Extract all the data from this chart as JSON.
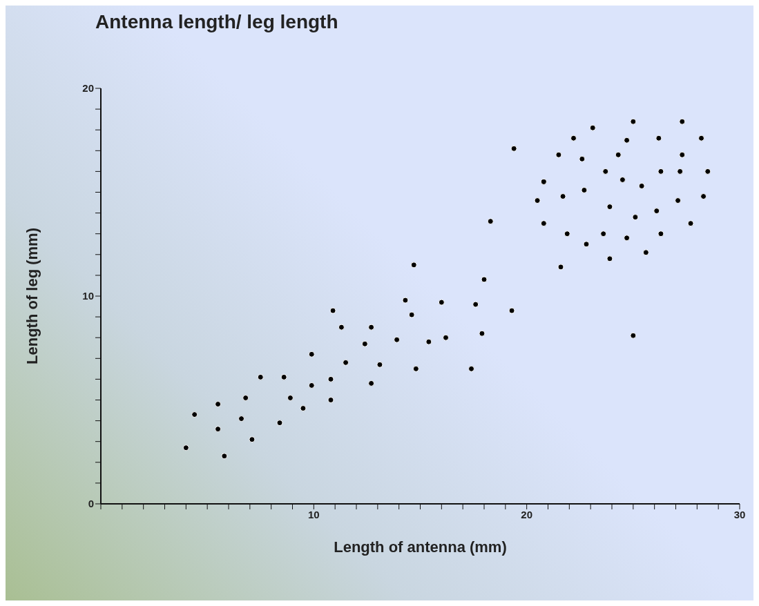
{
  "chart_data": {
    "type": "scatter",
    "title": "Antenna length/ leg length",
    "xlabel": "Length of antenna (mm)",
    "ylabel": "Length of leg (mm)",
    "grid": false,
    "legend": false,
    "marker": "circle",
    "xlim": [
      0,
      30
    ],
    "ylim": [
      0,
      20
    ],
    "xticks": [
      {
        "value": 0,
        "label": null
      },
      {
        "value": 1,
        "label": null
      },
      {
        "value": 2,
        "label": null
      },
      {
        "value": 3,
        "label": null
      },
      {
        "value": 4,
        "label": null
      },
      {
        "value": 5,
        "label": null
      },
      {
        "value": 6,
        "label": null
      },
      {
        "value": 7,
        "label": null
      },
      {
        "value": 8,
        "label": null
      },
      {
        "value": 9,
        "label": null
      },
      10,
      {
        "value": 11,
        "label": null
      },
      {
        "value": 12,
        "label": null
      },
      {
        "value": 13,
        "label": null
      },
      {
        "value": 14,
        "label": null
      },
      {
        "value": 15,
        "label": null
      },
      {
        "value": 16,
        "label": null
      },
      {
        "value": 17,
        "label": null
      },
      {
        "value": 18,
        "label": null
      },
      {
        "value": 19,
        "label": null
      },
      20,
      {
        "value": 21,
        "label": null
      },
      {
        "value": 22,
        "label": null
      },
      {
        "value": 23,
        "label": null
      },
      {
        "value": 24,
        "label": null
      },
      {
        "value": 25,
        "label": null
      },
      {
        "value": 26,
        "label": null
      },
      {
        "value": 27,
        "label": null
      },
      {
        "value": 28,
        "label": null
      },
      {
        "value": 29,
        "label": null
      },
      30
    ],
    "yticks": [
      0,
      {
        "value": 1,
        "label": null
      },
      {
        "value": 2,
        "label": null
      },
      {
        "value": 3,
        "label": null
      },
      {
        "value": 4,
        "label": null
      },
      {
        "value": 5,
        "label": null
      },
      {
        "value": 6,
        "label": null
      },
      {
        "value": 7,
        "label": null
      },
      {
        "value": 8,
        "label": null
      },
      {
        "value": 9,
        "label": null
      },
      10,
      {
        "value": 11,
        "label": null
      },
      {
        "value": 12,
        "label": null
      },
      {
        "value": 13,
        "label": null
      },
      {
        "value": 14,
        "label": null
      },
      {
        "value": 15,
        "label": null
      },
      {
        "value": 16,
        "label": null
      },
      {
        "value": 17,
        "label": null
      },
      {
        "value": 18,
        "label": null
      },
      {
        "value": 19,
        "label": null
      },
      20
    ],
    "series": [
      {
        "color": "#000000",
        "x": [
          4.0,
          4.4,
          5.5,
          5.5,
          5.8,
          6.6,
          6.8,
          7.1,
          7.5,
          8.4,
          8.6,
          8.9,
          9.5,
          9.9,
          9.9,
          10.8,
          10.8,
          10.9,
          11.3,
          11.5,
          12.4,
          12.7,
          12.7,
          13.1,
          13.9,
          14.3,
          14.6,
          14.7,
          14.8,
          15.4,
          16.0,
          16.2,
          17.4,
          17.6,
          17.9,
          18.0,
          18.3,
          19.3,
          19.4,
          20.5,
          20.8,
          20.8,
          21.5,
          21.6,
          21.7,
          21.9,
          22.2,
          22.6,
          22.7,
          22.8,
          23.1,
          23.6,
          23.7,
          23.9,
          23.9,
          24.3,
          24.5,
          24.7,
          24.7,
          25.0,
          25.0,
          25.1,
          25.4,
          25.6,
          26.1,
          26.2,
          26.3,
          26.3,
          27.1,
          27.2,
          27.3,
          27.3,
          27.7,
          28.2,
          28.3,
          28.5
        ],
        "values": [
          2.7,
          4.3,
          4.8,
          3.6,
          2.3,
          4.1,
          5.1,
          3.1,
          6.1,
          3.9,
          6.1,
          5.1,
          4.6,
          5.7,
          7.2,
          5.0,
          6.0,
          9.3,
          8.5,
          6.8,
          7.7,
          8.5,
          5.8,
          6.7,
          7.9,
          9.8,
          9.1,
          11.5,
          6.5,
          7.8,
          9.7,
          8.0,
          6.5,
          9.6,
          8.2,
          10.8,
          13.6,
          9.3,
          17.1,
          14.6,
          15.5,
          13.5,
          16.8,
          11.4,
          14.8,
          13.0,
          17.6,
          16.6,
          15.1,
          12.5,
          18.1,
          13.0,
          16.0,
          11.8,
          14.3,
          16.8,
          15.6,
          12.8,
          17.5,
          18.4,
          8.1,
          13.8,
          15.3,
          12.1,
          14.1,
          17.6,
          16.0,
          13.0,
          14.6,
          16.0,
          16.8,
          18.4,
          13.5,
          17.6,
          14.8,
          16.0
        ]
      }
    ]
  }
}
